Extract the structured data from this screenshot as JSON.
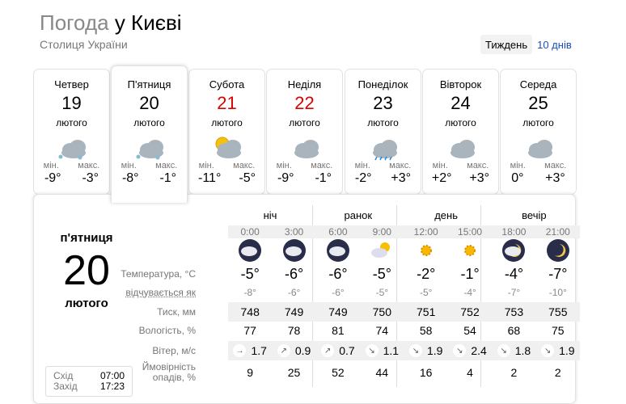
{
  "header": {
    "title_prefix": "Погода",
    "title_city": "у Києві",
    "subtitle": "Столиця України"
  },
  "tabs": [
    {
      "label": "Тиждень",
      "active": true
    },
    {
      "label": "10 днів",
      "active": false
    }
  ],
  "days": [
    {
      "name": "Четвер",
      "date": "19",
      "month": "лютого",
      "icon": "cloudy-snow-icon",
      "min_label": "мін.",
      "max_label": "макс.",
      "min": "-9°",
      "max": "-3°",
      "weekend": false
    },
    {
      "name": "П'ятниця",
      "date": "20",
      "month": "лютого",
      "icon": "cloudy-light-snow-icon",
      "min_label": "мін.",
      "max_label": "макс.",
      "min": "-8°",
      "max": "-1°",
      "weekend": false,
      "selected": true
    },
    {
      "name": "Субота",
      "date": "21",
      "month": "лютого",
      "icon": "partly-cloudy-icon",
      "min_label": "мін.",
      "max_label": "макс.",
      "min": "-11°",
      "max": "-5°",
      "weekend": true
    },
    {
      "name": "Неділя",
      "date": "22",
      "month": "лютого",
      "icon": "cloudy-icon",
      "min_label": "мін.",
      "max_label": "макс.",
      "min": "-9°",
      "max": "-1°",
      "weekend": true
    },
    {
      "name": "Понеділок",
      "date": "23",
      "month": "лютого",
      "icon": "cloudy-rain-icon",
      "min_label": "мін.",
      "max_label": "макс.",
      "min": "-2°",
      "max": "+3°",
      "weekend": false
    },
    {
      "name": "Вівторок",
      "date": "24",
      "month": "лютого",
      "icon": "cloudy-icon",
      "min_label": "мін.",
      "max_label": "макс.",
      "min": "+2°",
      "max": "+3°",
      "weekend": false
    },
    {
      "name": "Середа",
      "date": "25",
      "month": "лютого",
      "icon": "cloudy-icon",
      "min_label": "мін.",
      "max_label": "макс.",
      "min": "0°",
      "max": "+3°",
      "weekend": false
    }
  ],
  "detail": {
    "weekday": "п'ятниця",
    "date": "20",
    "month": "лютого",
    "sunrise_label": "Схід",
    "sunrise": "07:00",
    "sunset_label": "Захід",
    "sunset": "17:23",
    "periods": [
      "ніч",
      "ранок",
      "день",
      "вечір"
    ],
    "times": [
      "0:00",
      "3:00",
      "6:00",
      "9:00",
      "12:00",
      "15:00",
      "18:00",
      "21:00"
    ],
    "icons": [
      "night-cloudy-icon",
      "night-overcast-icon",
      "night-overcast-snow-icon",
      "partly-cloudy-icon",
      "sun-icon",
      "sun-icon",
      "night-partly-cloudy-icon",
      "moon-icon"
    ],
    "labels": {
      "temp": "Температура, °C",
      "feels": "відчувається як",
      "pressure": "Тиск, мм",
      "humidity": "Вологість, %",
      "wind": "Вітер, м/с",
      "precip": "Ймовірність опадів, %"
    },
    "temp": [
      "-5°",
      "-6°",
      "-6°",
      "-5°",
      "-2°",
      "-1°",
      "-4°",
      "-7°"
    ],
    "feels": [
      "-8°",
      "-6°",
      "-6°",
      "-5°",
      "-5°",
      "-4°",
      "-7°",
      "-10°"
    ],
    "pressure": [
      "748",
      "749",
      "749",
      "750",
      "751",
      "752",
      "753",
      "755"
    ],
    "humidity": [
      "77",
      "78",
      "81",
      "74",
      "58",
      "54",
      "68",
      "75"
    ],
    "wind_dir": [
      "→",
      "↗",
      "↗",
      "↘",
      "↘",
      "↘",
      "↘",
      "↘"
    ],
    "wind": [
      "1.7",
      "0.9",
      "0.7",
      "1.1",
      "1.9",
      "2.4",
      "1.8",
      "1.9"
    ],
    "precip": [
      "9",
      "25",
      "52",
      "44",
      "16",
      "4",
      "2",
      "2"
    ]
  }
}
